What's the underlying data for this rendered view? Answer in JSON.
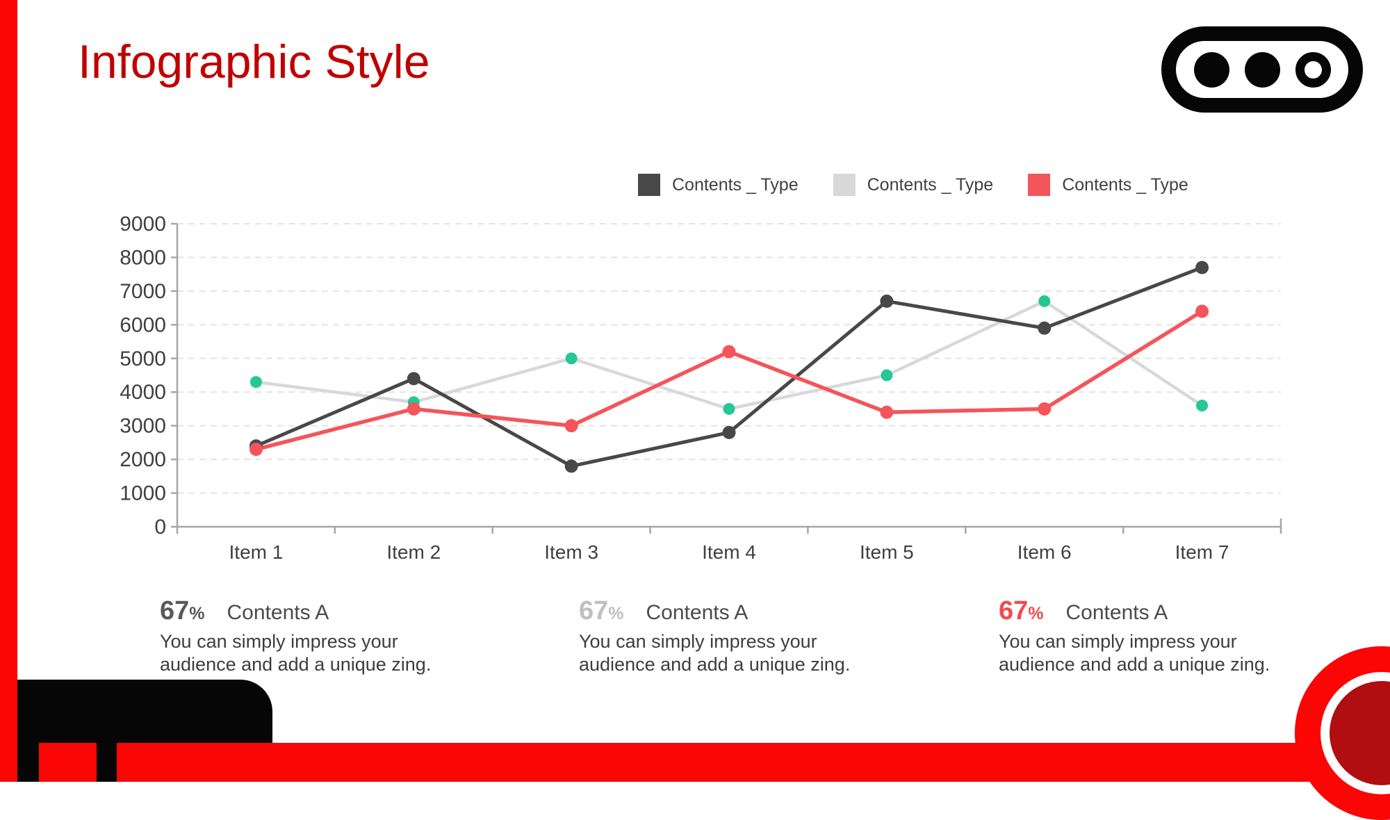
{
  "slide": {
    "title": "Infographic Style",
    "colors": {
      "title_red": "#C00000",
      "bright_red": "#FB0505",
      "dark_red": "#B00E10",
      "black": "#060606",
      "axis_gray": "#a6a6a6",
      "grid_gray": "#e3e3e3"
    }
  },
  "legend": {
    "items": [
      {
        "label": "Contents _ Type",
        "color": "#4a4a4a"
      },
      {
        "label": "Contents _ Type",
        "color": "#d8d8d8"
      },
      {
        "label": "Contents _ Type",
        "color": "#f4555a"
      }
    ]
  },
  "chart_data": {
    "type": "line",
    "title": "",
    "xlabel": "",
    "ylabel": "",
    "categories": [
      "Item 1",
      "Item 2",
      "Item 3",
      "Item 4",
      "Item 5",
      "Item 6",
      "Item 7"
    ],
    "series": [
      {
        "name": "Contents _ Type",
        "line_color": "#484848",
        "marker_color": "#484848",
        "values": [
          2400,
          4400,
          1800,
          2800,
          6700,
          5900,
          7700
        ]
      },
      {
        "name": "Contents _ Type",
        "line_color": "#d8d8d8",
        "marker_color": "#25c793",
        "values": [
          4300,
          3700,
          5000,
          3500,
          4500,
          6700,
          3600
        ]
      },
      {
        "name": "Contents _ Type",
        "line_color": "#f4555a",
        "marker_color": "#f4555a",
        "values": [
          2300,
          3500,
          3000,
          5200,
          3400,
          3500,
          6400
        ]
      }
    ],
    "ylim": [
      0,
      9000
    ],
    "ytick_step": 1000,
    "grid": "dashed horizontal",
    "legend_position": "top-right"
  },
  "stats": [
    {
      "value": "67",
      "unit": "%",
      "label": "Contents A",
      "value_color": "#595959",
      "desc": "You can simply impress your audience and add a unique zing."
    },
    {
      "value": "67",
      "unit": "%",
      "label": "Contents A",
      "value_color": "#bfbfbf",
      "desc": "You can simply impress your audience and add a unique zing."
    },
    {
      "value": "67",
      "unit": "%",
      "label": "Contents A",
      "value_color": "#f4494e",
      "desc": "You can simply impress your audience and add a unique zing."
    }
  ]
}
